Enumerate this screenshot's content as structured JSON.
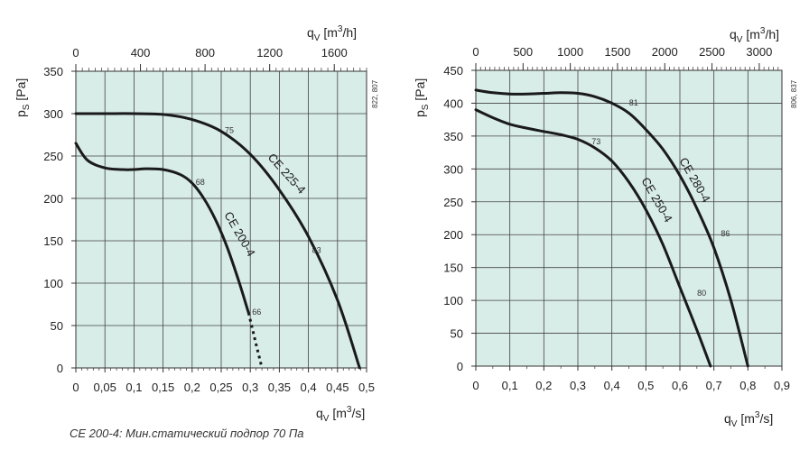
{
  "caption": "CE 200-4: Мин.статический подпор 70 Па",
  "chart_data": [
    {
      "type": "line",
      "x_axis": {
        "label": "q",
        "sub": "V",
        "unit": "[m",
        "unit_exp": "3",
        "unit_end": "/s]",
        "range": [
          0,
          0.5
        ],
        "ticks": [
          "0",
          "0,05",
          "0,1",
          "0,15",
          "0,2",
          "0,25",
          "0,3",
          "0,35",
          "0,4",
          "0,45",
          "0,5"
        ]
      },
      "x2_axis": {
        "label": "q",
        "sub": "V",
        "unit": "[m",
        "unit_exp": "3",
        "unit_end": "/h]",
        "range": [
          0,
          1800
        ],
        "ticks": [
          "0",
          "400",
          "800",
          "1200",
          "1600"
        ]
      },
      "y_axis": {
        "label": "p",
        "sub": "S",
        "unit": "[Pa]",
        "range": [
          0,
          350
        ],
        "ticks": [
          "0",
          "50",
          "100",
          "150",
          "200",
          "250",
          "300",
          "350"
        ]
      },
      "side_text": "822, 807",
      "grid": true,
      "series": [
        {
          "name": "CE 200-4",
          "x": [
            0,
            0.02,
            0.05,
            0.08,
            0.1,
            0.12,
            0.15,
            0.18,
            0.2,
            0.22,
            0.24,
            0.26,
            0.28,
            0.297
          ],
          "y": [
            265,
            245,
            236,
            234,
            234,
            235,
            234,
            228,
            218,
            200,
            175,
            143,
            103,
            65
          ]
        },
        {
          "name": "CE 200-4 (min)",
          "style": "dashed",
          "x": [
            0.297,
            0.31,
            0.32
          ],
          "y": [
            65,
            28,
            0
          ]
        },
        {
          "name": "CE 225-4",
          "x": [
            0,
            0.05,
            0.1,
            0.15,
            0.2,
            0.25,
            0.3,
            0.35,
            0.4,
            0.45,
            0.488
          ],
          "y": [
            300,
            300,
            300,
            299,
            293,
            279,
            252,
            210,
            155,
            80,
            0
          ]
        }
      ],
      "annotations": [
        {
          "text": "68",
          "x": 0.2,
          "y": 218
        },
        {
          "text": "66",
          "x": 0.297,
          "y": 65
        },
        {
          "text": "75",
          "x": 0.25,
          "y": 279
        },
        {
          "text": "83",
          "x": 0.4,
          "y": 138
        }
      ]
    },
    {
      "type": "line",
      "x_axis": {
        "label": "q",
        "sub": "V",
        "unit": "[m",
        "unit_exp": "3",
        "unit_end": "/s]",
        "range": [
          0,
          0.9
        ],
        "ticks": [
          "0",
          "0,1",
          "0,2",
          "0,3",
          "0,4",
          "0,5",
          "0,6",
          "0,7",
          "0,8",
          "0,9"
        ]
      },
      "x2_axis": {
        "label": "q",
        "sub": "V",
        "unit": "[m",
        "unit_exp": "3",
        "unit_end": "/h]",
        "range": [
          0,
          3240
        ],
        "ticks": [
          "0",
          "500",
          "1000",
          "1500",
          "2000",
          "2500",
          "3000"
        ]
      },
      "y_axis": {
        "label": "p",
        "sub": "S",
        "unit": "[Pa]",
        "range": [
          0,
          450
        ],
        "ticks": [
          "0",
          "50",
          "100",
          "150",
          "200",
          "250",
          "300",
          "350",
          "400",
          "450"
        ]
      },
      "side_text": "806, 837",
      "grid": true,
      "series": [
        {
          "name": "CE 250-4",
          "x": [
            0,
            0.05,
            0.1,
            0.15,
            0.2,
            0.25,
            0.3,
            0.35,
            0.4,
            0.45,
            0.5,
            0.55,
            0.6,
            0.65,
            0.69
          ],
          "y": [
            390,
            378,
            368,
            362,
            357,
            352,
            345,
            332,
            312,
            280,
            238,
            185,
            120,
            55,
            0
          ]
        },
        {
          "name": "CE 280-4",
          "x": [
            0,
            0.05,
            0.1,
            0.15,
            0.2,
            0.25,
            0.3,
            0.35,
            0.4,
            0.45,
            0.5,
            0.55,
            0.6,
            0.65,
            0.7,
            0.75,
            0.8
          ],
          "y": [
            420,
            416,
            414,
            414,
            415,
            416,
            415,
            410,
            400,
            385,
            360,
            330,
            290,
            240,
            180,
            100,
            0
          ]
        }
      ],
      "annotations": [
        {
          "text": "73",
          "x": 0.33,
          "y": 340
        },
        {
          "text": "80",
          "x": 0.64,
          "y": 110
        },
        {
          "text": "81",
          "x": 0.44,
          "y": 399
        },
        {
          "text": "86",
          "x": 0.71,
          "y": 200
        }
      ]
    }
  ]
}
